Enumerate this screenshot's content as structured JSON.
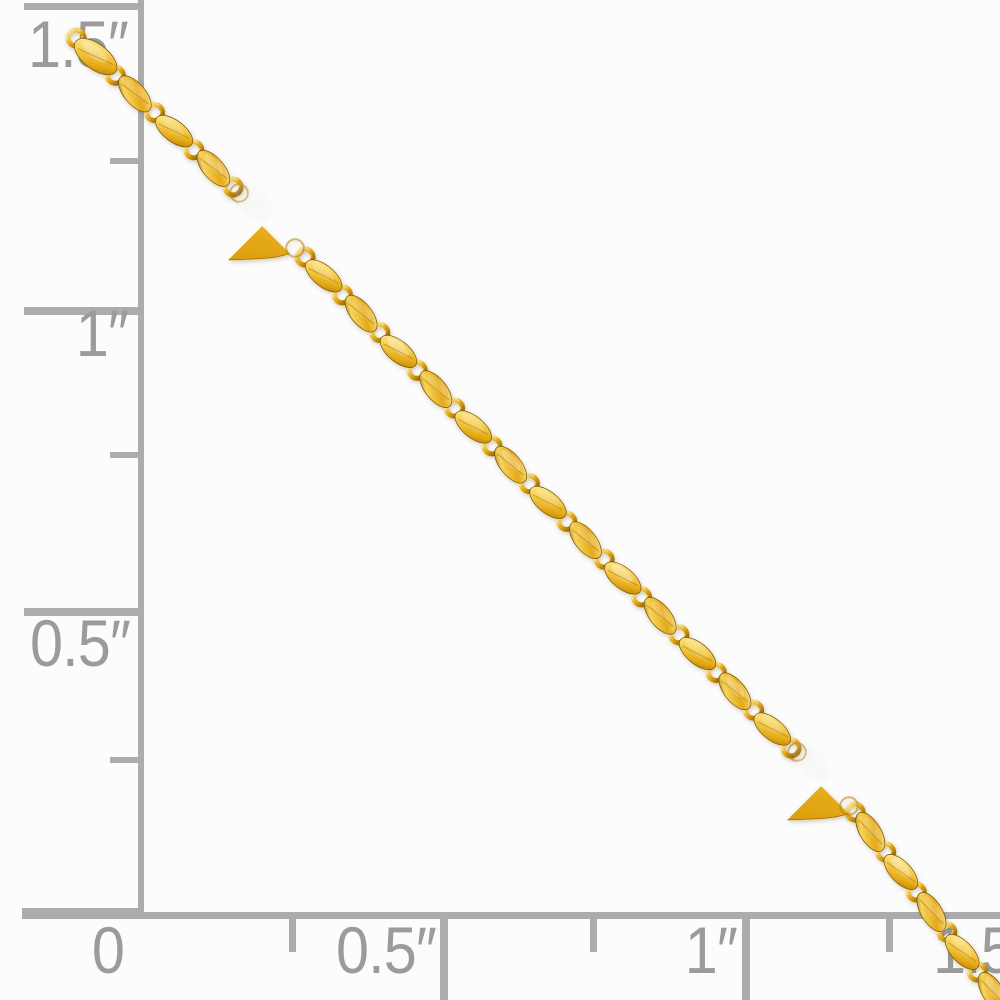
{
  "background": "#fcfcfc",
  "ruler": {
    "unit": "inches",
    "line_color": "#acacac",
    "text_color": "#9b9b9b",
    "vertical_labels": [
      "1.5″",
      "1″",
      "0.5″"
    ],
    "horizontal_labels": [
      "0",
      "0.5″",
      "1″",
      "1.5"
    ]
  },
  "jewelry": {
    "type": "flat-link chain with heart charms",
    "heart_charm_count": 2,
    "colors": {
      "gold_highlight": "#fdf0b2",
      "gold_light": "#f6d45e",
      "gold_mid": "#e5a916",
      "gold_deep": "#a87300",
      "gold_shadow": "#7a5200",
      "heart_top": "#f3cb55",
      "heart_mid": "#eab020",
      "heart_bottom": "#d79a06"
    }
  }
}
